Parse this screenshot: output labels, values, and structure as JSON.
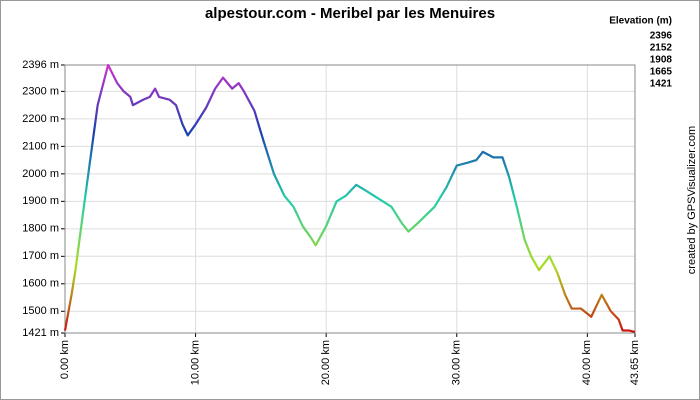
{
  "chart_data": {
    "type": "line",
    "title": "alpestour.com - Meribel par les Menuires",
    "credit": "created by GPSVisualizer.com",
    "legend_title": "Elevation (m)",
    "color_scale": [
      {
        "value": 2396,
        "color": "#cc33cc"
      },
      {
        "value": 2152,
        "color": "#1a3fb0"
      },
      {
        "value": 1908,
        "color": "#22ccaa"
      },
      {
        "value": 1665,
        "color": "#aadd22"
      },
      {
        "value": 1421,
        "color": "#cc1111"
      }
    ],
    "x": [
      0,
      0.5,
      0.8,
      1.5,
      2.5,
      3.3,
      4,
      4.5,
      5,
      5.2,
      6,
      6.5,
      6.9,
      7.2,
      8,
      8.5,
      9,
      9.4,
      10,
      10.8,
      11.5,
      12.1,
      12.8,
      13.3,
      13.7,
      14.5,
      15.2,
      16,
      16.8,
      17.5,
      18.2,
      18.8,
      19.2,
      20,
      20.8,
      21.5,
      22.3,
      23,
      24,
      25,
      25.8,
      26.3,
      27,
      28.3,
      29.2,
      30,
      30.8,
      31.5,
      32,
      32.8,
      33.5,
      34,
      34.6,
      35.2,
      35.7,
      36.3,
      37.1,
      37.7,
      38.3,
      38.8,
      39.5,
      40.3,
      41.1,
      41.8,
      42.4,
      42.7,
      43.2,
      43.65
    ],
    "values": [
      1430,
      1560,
      1650,
      1900,
      2250,
      2396,
      2330,
      2300,
      2280,
      2250,
      2270,
      2280,
      2310,
      2280,
      2270,
      2250,
      2180,
      2140,
      2180,
      2240,
      2310,
      2350,
      2310,
      2330,
      2300,
      2230,
      2120,
      2000,
      1920,
      1880,
      1810,
      1770,
      1740,
      1810,
      1900,
      1920,
      1960,
      1940,
      1910,
      1880,
      1820,
      1790,
      1820,
      1880,
      1950,
      2030,
      2040,
      2050,
      2080,
      2060,
      2060,
      1990,
      1880,
      1760,
      1700,
      1650,
      1700,
      1640,
      1560,
      1510,
      1510,
      1480,
      1560,
      1500,
      1470,
      1430,
      1430,
      1425
    ],
    "xlim": [
      0,
      43.65
    ],
    "ylim": [
      1421,
      2396
    ],
    "xticks": [
      {
        "value": 0,
        "label": "0.00 km"
      },
      {
        "value": 10,
        "label": "10.00 km"
      },
      {
        "value": 20,
        "label": "20.00 km"
      },
      {
        "value": 30,
        "label": "30.00 km"
      },
      {
        "value": 40,
        "label": "40.00 km"
      },
      {
        "value": 43.65,
        "label": "43.65 km"
      }
    ],
    "yticks": [
      {
        "value": 1421,
        "label": "1421 m"
      },
      {
        "value": 1500,
        "label": "1500 m"
      },
      {
        "value": 1600,
        "label": "1600 m"
      },
      {
        "value": 1700,
        "label": "1700 m"
      },
      {
        "value": 1800,
        "label": "1800 m"
      },
      {
        "value": 1900,
        "label": "1900 m"
      },
      {
        "value": 2000,
        "label": "2000 m"
      },
      {
        "value": 2100,
        "label": "2100 m"
      },
      {
        "value": 2200,
        "label": "2200 m"
      },
      {
        "value": 2300,
        "label": "2300 m"
      },
      {
        "value": 2396,
        "label": "2396 m"
      }
    ],
    "grid": true
  }
}
